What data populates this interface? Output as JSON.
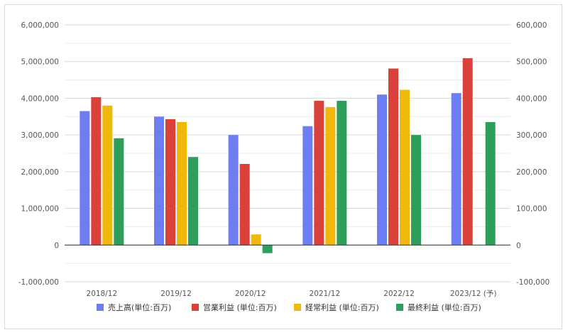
{
  "chart_data": {
    "type": "bar",
    "categories": [
      "2018/12",
      "2019/12",
      "2020/12",
      "2021/12",
      "2022/12",
      "2023/12 (予)"
    ],
    "series": [
      {
        "name": "売上高(単位:百万)",
        "axis": "left",
        "color": "#6d7ef2",
        "values": [
          3650000,
          3500000,
          3000000,
          3240000,
          4100000,
          4140000
        ]
      },
      {
        "name": "営業利益 (単位:百万)",
        "axis": "right",
        "color": "#d9413a",
        "values": [
          403000,
          343000,
          221000,
          393000,
          481000,
          509000
        ]
      },
      {
        "name": "経常利益 (単位:百万)",
        "axis": "right",
        "color": "#efb80b",
        "values": [
          380000,
          335000,
          29000,
          376000,
          423000,
          null
        ]
      },
      {
        "name": "最終利益 (単位:百万)",
        "axis": "right",
        "color": "#2e9e5b",
        "values": [
          291000,
          240000,
          -22000,
          393000,
          300000,
          335000
        ]
      }
    ],
    "left_axis": {
      "ylim": [
        -1000000,
        6000000
      ],
      "ticks": [
        "-1,000,000",
        "0",
        "1,000,000",
        "2,000,000",
        "3,000,000",
        "4,000,000",
        "5,000,000",
        "6,000,000"
      ]
    },
    "right_axis": {
      "ylim": [
        -100000,
        600000
      ],
      "ticks": [
        "-100,000",
        "0",
        "100,000",
        "200,000",
        "300,000",
        "400,000",
        "500,000",
        "600,000"
      ]
    },
    "grid": true,
    "legend_position": "bottom"
  }
}
